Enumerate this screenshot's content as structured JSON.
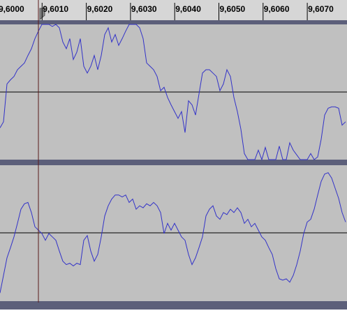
{
  "ruler": {
    "labels": [
      "9,6000",
      "9,6010",
      "9,6020",
      "9,6030",
      "9,6040",
      "9,6050",
      "9,6060",
      "9,6070"
    ]
  },
  "tracks": [
    {
      "color": "#3232c8",
      "samples": [
        -0.53,
        -0.44,
        0.12,
        0.18,
        0.23,
        0.33,
        0.38,
        0.43,
        0.54,
        0.64,
        0.79,
        0.9,
        1,
        1,
        1,
        0.97,
        1,
        0.95,
        0.74,
        0.64,
        0.79,
        0.48,
        0.59,
        0.79,
        0.38,
        0.28,
        0.38,
        0.54,
        0.33,
        0.54,
        0.85,
        0.95,
        0.74,
        0.85,
        0.69,
        0.79,
        0.9,
        1,
        1,
        1,
        0.95,
        0.79,
        0.43,
        0.38,
        0.33,
        0.23,
        0.02,
        0.07,
        -0.08,
        -0.19,
        -0.29,
        -0.39,
        -0.29,
        -0.6,
        -0.13,
        -0.19,
        -0.34,
        -0.03,
        0.28,
        0.33,
        0.33,
        0.28,
        0.23,
        0.02,
        0.12,
        0.33,
        0.23,
        -0.08,
        -0.29,
        -0.55,
        -0.91,
        -1,
        -1,
        -1,
        -0.86,
        -1,
        -0.82,
        -1,
        -1,
        -1,
        -0.8,
        -1,
        -1,
        -0.75,
        -0.86,
        -0.93,
        -1,
        -1,
        -1,
        -0.91,
        -1,
        -0.96,
        -0.7,
        -0.34,
        -0.24,
        -0.22,
        -0.22,
        -0.24,
        -0.49,
        -0.44
      ]
    },
    {
      "color": "#3232c8",
      "samples": [
        -0.89,
        -0.63,
        -0.37,
        -0.22,
        -0.06,
        0.14,
        0.35,
        0.43,
        0.45,
        0.3,
        0.09,
        0.04,
        -0.01,
        -0.11,
        -0.01,
        -0.06,
        -0.11,
        -0.27,
        -0.42,
        -0.47,
        -0.45,
        -0.49,
        -0.45,
        -0.47,
        -0.11,
        -0.04,
        -0.27,
        -0.42,
        -0.32,
        -0.06,
        0.25,
        0.4,
        0.5,
        0.56,
        0.56,
        0.53,
        0.56,
        0.45,
        0.5,
        0.35,
        0.4,
        0.37,
        0.43,
        0.4,
        0.45,
        0.4,
        0.3,
        -0.01,
        0.14,
        0.04,
        0.14,
        0.04,
        -0.06,
        -0.11,
        -0.32,
        -0.47,
        -0.37,
        -0.22,
        -0.06,
        0.25,
        0.35,
        0.4,
        0.25,
        0.2,
        0.3,
        0.27,
        0.35,
        0.3,
        0.37,
        0.3,
        0.14,
        0.2,
        0.09,
        0.14,
        0.04,
        -0.06,
        -0.11,
        -0.22,
        -0.32,
        -0.53,
        -0.68,
        -0.7,
        -0.68,
        -0.73,
        -0.63,
        -0.47,
        -0.27,
        -0.01,
        0.16,
        0.2,
        0.35,
        0.56,
        0.76,
        0.87,
        0.89,
        0.81,
        0.66,
        0.51,
        0.3,
        0.16
      ]
    }
  ]
}
